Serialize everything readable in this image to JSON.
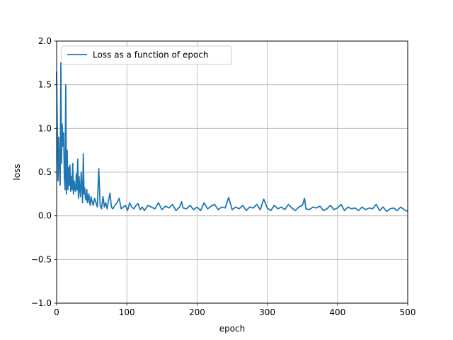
{
  "chart_data": {
    "type": "line",
    "xlabel": "epoch",
    "ylabel": "loss",
    "xlim": [
      0,
      500
    ],
    "ylim": [
      -1.0,
      2.0
    ],
    "xticks": [
      "0",
      "100",
      "200",
      "300",
      "400",
      "500"
    ],
    "yticks": [
      "−1.0",
      "−0.5",
      "0.0",
      "0.5",
      "1.0",
      "1.5",
      "2.0"
    ],
    "grid": true,
    "legend_position": "upper-left",
    "series": [
      {
        "name": "Loss as a function of epoch",
        "color": "#1f77b4",
        "x": [
          0,
          1,
          2,
          3,
          4,
          5,
          6,
          7,
          8,
          9,
          10,
          11,
          12,
          13,
          14,
          15,
          16,
          17,
          18,
          19,
          20,
          21,
          22,
          23,
          24,
          25,
          26,
          27,
          28,
          29,
          30,
          31,
          32,
          33,
          34,
          35,
          36,
          37,
          38,
          39,
          40,
          41,
          42,
          43,
          44,
          45,
          46,
          47,
          48,
          49,
          50,
          52,
          54,
          56,
          58,
          60,
          62,
          64,
          66,
          68,
          70,
          72,
          74,
          76,
          78,
          80,
          83,
          86,
          89,
          92,
          95,
          98,
          101,
          104,
          107,
          110,
          113,
          116,
          119,
          122,
          125,
          130,
          135,
          140,
          145,
          150,
          155,
          160,
          165,
          170,
          175,
          178,
          180,
          185,
          190,
          195,
          200,
          205,
          210,
          215,
          220,
          225,
          230,
          235,
          240,
          245,
          250,
          255,
          260,
          265,
          270,
          275,
          280,
          285,
          290,
          295,
          300,
          305,
          310,
          315,
          320,
          325,
          330,
          335,
          340,
          345,
          350,
          353,
          355,
          360,
          365,
          370,
          375,
          380,
          385,
          390,
          395,
          400,
          405,
          410,
          415,
          420,
          425,
          430,
          435,
          440,
          445,
          450,
          455,
          460,
          465,
          470,
          475,
          480,
          485,
          490,
          495,
          500
        ],
        "y": [
          1.65,
          0.95,
          0.4,
          0.9,
          0.55,
          0.35,
          1.75,
          0.6,
          1.05,
          0.8,
          0.95,
          0.45,
          0.3,
          1.5,
          0.25,
          0.75,
          0.3,
          0.55,
          0.35,
          0.58,
          0.28,
          0.45,
          0.3,
          0.6,
          0.25,
          0.4,
          0.3,
          0.28,
          0.48,
          0.3,
          0.65,
          0.2,
          0.45,
          0.3,
          0.22,
          0.5,
          0.35,
          0.15,
          0.71,
          0.25,
          0.32,
          0.2,
          0.18,
          0.3,
          0.15,
          0.2,
          0.25,
          0.15,
          0.12,
          0.22,
          0.18,
          0.12,
          0.2,
          0.15,
          0.1,
          0.54,
          0.12,
          0.08,
          0.22,
          0.1,
          0.15,
          0.08,
          0.18,
          0.26,
          0.1,
          0.08,
          0.12,
          0.15,
          0.2,
          0.08,
          0.1,
          0.12,
          0.06,
          0.15,
          0.1,
          0.08,
          0.12,
          0.14,
          0.07,
          0.1,
          0.06,
          0.12,
          0.1,
          0.08,
          0.15,
          0.07,
          0.11,
          0.09,
          0.13,
          0.06,
          0.1,
          0.16,
          0.09,
          0.08,
          0.12,
          0.07,
          0.1,
          0.06,
          0.15,
          0.08,
          0.11,
          0.13,
          0.07,
          0.1,
          0.09,
          0.21,
          0.07,
          0.1,
          0.08,
          0.12,
          0.06,
          0.1,
          0.09,
          0.13,
          0.07,
          0.19,
          0.09,
          0.06,
          0.12,
          0.08,
          0.1,
          0.07,
          0.13,
          0.09,
          0.06,
          0.1,
          0.12,
          0.2,
          0.08,
          0.07,
          0.1,
          0.09,
          0.11,
          0.06,
          0.08,
          0.12,
          0.07,
          0.09,
          0.13,
          0.06,
          0.1,
          0.08,
          0.09,
          0.06,
          0.1,
          0.07,
          0.09,
          0.08,
          0.13,
          0.06,
          0.1,
          0.05,
          0.08,
          0.09,
          0.06,
          0.1,
          0.07,
          0.05
        ]
      }
    ]
  }
}
